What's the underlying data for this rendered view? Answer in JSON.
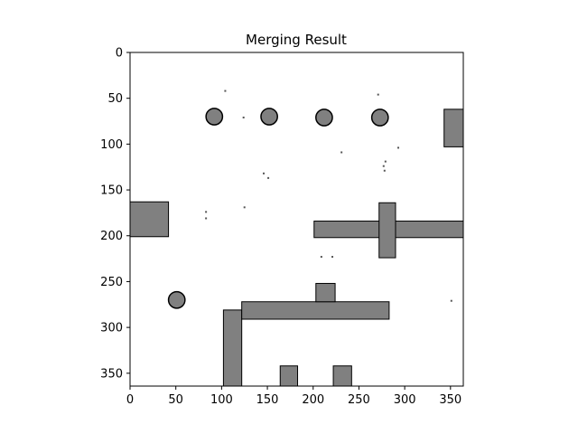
{
  "chart_data": {
    "type": "heatmap",
    "title": "Merging Result",
    "xlabel": "",
    "ylabel": "",
    "xlim": [
      0,
      364
    ],
    "ylim": [
      364,
      0
    ],
    "xticks": [
      0,
      50,
      100,
      150,
      200,
      250,
      300,
      350
    ],
    "yticks": [
      0,
      50,
      100,
      150,
      200,
      250,
      300,
      350
    ],
    "grid": false,
    "colormap": "gray",
    "colors": {
      "free": "#ffffff",
      "occupied": "#808080",
      "edge": "#000000"
    },
    "obstacles": [
      {
        "shape": "rect",
        "x": [
          0,
          42
        ],
        "y": [
          163,
          201
        ]
      },
      {
        "shape": "rect",
        "x": [
          343,
          364
        ],
        "y": [
          62,
          103
        ]
      },
      {
        "shape": "rect",
        "x": [
          201,
          364
        ],
        "y": [
          184,
          202
        ]
      },
      {
        "shape": "rect",
        "x": [
          272,
          290
        ],
        "y": [
          164,
          224
        ]
      },
      {
        "shape": "rect",
        "x": [
          102,
          122
        ],
        "y": [
          281,
          364
        ]
      },
      {
        "shape": "rect",
        "x": [
          122,
          283
        ],
        "y": [
          272,
          291
        ]
      },
      {
        "shape": "rect",
        "x": [
          203,
          224
        ],
        "y": [
          252,
          272
        ]
      },
      {
        "shape": "rect",
        "x": [
          164,
          183
        ],
        "y": [
          342,
          364
        ]
      },
      {
        "shape": "rect",
        "x": [
          222,
          242
        ],
        "y": [
          342,
          364
        ]
      },
      {
        "shape": "circle",
        "cx": 92,
        "cy": 70,
        "r": 9
      },
      {
        "shape": "circle",
        "cx": 152,
        "cy": 70,
        "r": 9
      },
      {
        "shape": "circle",
        "cx": 212,
        "cy": 71,
        "r": 9
      },
      {
        "shape": "circle",
        "cx": 273,
        "cy": 71,
        "r": 9
      },
      {
        "shape": "circle",
        "cx": 51,
        "cy": 270,
        "r": 9
      }
    ],
    "noise": [
      [
        103,
        41
      ],
      [
        123,
        70
      ],
      [
        150,
        136
      ],
      [
        292,
        103
      ],
      [
        278,
        118
      ],
      [
        277,
        128
      ],
      [
        82,
        173
      ],
      [
        82,
        180
      ],
      [
        124,
        168
      ],
      [
        208,
        222
      ],
      [
        220,
        222
      ],
      [
        270,
        45
      ],
      [
        230,
        108
      ],
      [
        276,
        123
      ],
      [
        145,
        131
      ],
      [
        350,
        270
      ]
    ]
  }
}
